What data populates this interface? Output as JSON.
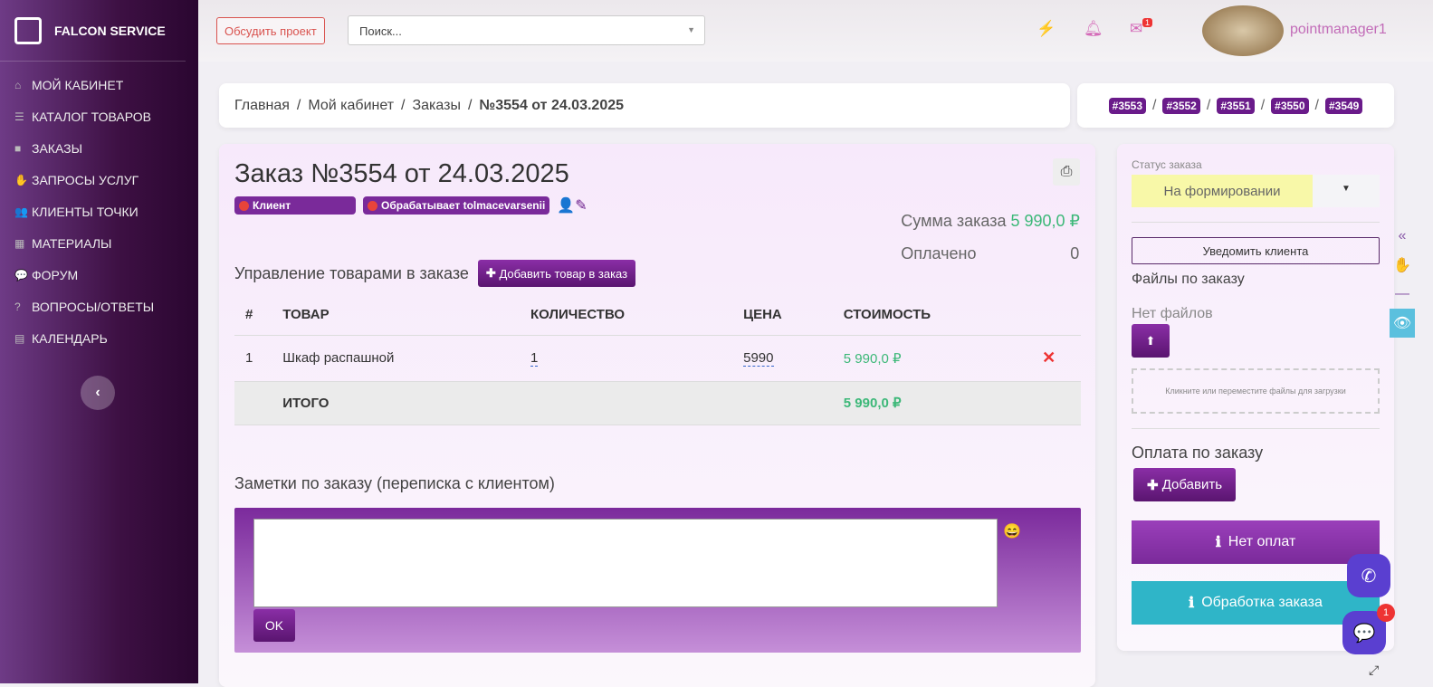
{
  "sidebar": {
    "brand": "FALCON SERVICE",
    "items": [
      {
        "label": "МОЙ КАБИНЕТ",
        "icon": "home-icon"
      },
      {
        "label": "КАТАЛОГ ТОВАРОВ",
        "icon": "list-icon"
      },
      {
        "label": "ЗАКАЗЫ",
        "icon": "bag-icon"
      },
      {
        "label": "ЗАПРОСЫ УСЛУГ",
        "icon": "hand-icon"
      },
      {
        "label": "КЛИЕНТЫ ТОЧКИ",
        "icon": "users-icon"
      },
      {
        "label": "МАТЕРИАЛЫ",
        "icon": "cubes-icon"
      },
      {
        "label": "ФОРУМ",
        "icon": "comments-icon"
      },
      {
        "label": "ВОПРОСЫ/ОТВЕТЫ",
        "icon": "question-icon"
      },
      {
        "label": "КАЛЕНДАРЬ",
        "icon": "calendar-icon"
      }
    ]
  },
  "topbar": {
    "discuss": "Обсудить проект",
    "search_placeholder": "Поиск...",
    "mail_count": "1",
    "username": "pointmanager1"
  },
  "breadcrumb": [
    "Главная",
    "Мой кабинет",
    "Заказы",
    "№3554 от 24.03.2025"
  ],
  "nearby_orders": [
    "#3553",
    "#3552",
    "#3551",
    "#3550",
    "#3549"
  ],
  "order": {
    "title": "Заказ №3554 от 24.03.2025",
    "client_label": "Клиент",
    "handler_label": "Обрабатывает tolmacevarsenii",
    "sum_label": "Сумма заказа",
    "sum_value": "5 990,0 ₽",
    "paid_label": "Оплачено",
    "paid_value": "0",
    "goods_title": "Управление товарами в заказе",
    "add_goods": "Добавить товар в заказ",
    "columns": [
      "#",
      "ТОВАР",
      "КОЛИЧЕСТВО",
      "ЦЕНА",
      "СТОИМОСТЬ"
    ],
    "rows": [
      {
        "n": "1",
        "name": "Шкаф распашной",
        "qty": "1",
        "price": "5990",
        "cost": "5 990,0 ₽"
      }
    ],
    "total_label": "ИТОГО",
    "total_value": "5 990,0 ₽",
    "notes_title": "Заметки по заказу (переписка с клиентом)",
    "ok": "OK"
  },
  "right": {
    "status_label": "Статус заказа",
    "status_value": "На формировании",
    "status_color": "#f8f8a8",
    "notify": "Уведомить клиента",
    "files_title": "Файлы по заказу",
    "no_files": "Нет файлов",
    "drop_text": "Кликните или переместите файлы для загрузки",
    "payment_title": "Оплата по заказу",
    "add": "Добавить",
    "no_payments": "Нет оплат",
    "processing": "Обработка заказа"
  },
  "chat_badge": "1"
}
